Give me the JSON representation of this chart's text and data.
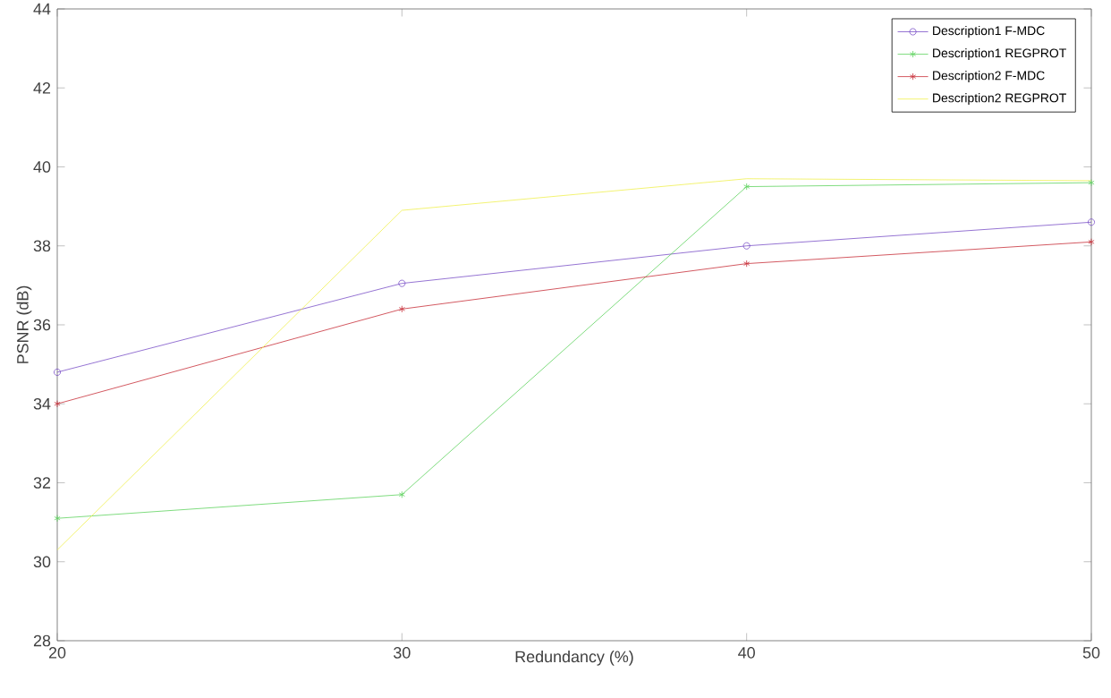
{
  "chart_data": {
    "type": "line",
    "xlabel": "Redundancy (%)",
    "ylabel": "PSNR (dB)",
    "x": [
      20,
      30,
      40,
      50
    ],
    "series": [
      {
        "name": "Description1 F-MDC",
        "color": "#7b52c8",
        "marker": "circle",
        "values": [
          34.8,
          37.05,
          38.0,
          38.6
        ]
      },
      {
        "name": "Description1 REGPROT",
        "color": "#5fd35f",
        "marker": "cross",
        "values": [
          31.1,
          31.7,
          39.5,
          39.6
        ]
      },
      {
        "name": "Description2 F-MDC",
        "color": "#c8303a",
        "marker": "cross",
        "values": [
          34.0,
          36.4,
          37.55,
          38.1
        ]
      },
      {
        "name": "Description2 REGPROT",
        "color": "#f0f050",
        "marker": "none",
        "values": [
          30.3,
          38.9,
          39.7,
          39.65
        ]
      }
    ],
    "xlim": [
      20,
      50
    ],
    "ylim": [
      28,
      44
    ],
    "xticks": [
      20,
      30,
      40,
      50
    ],
    "yticks": [
      28,
      30,
      32,
      34,
      36,
      38,
      40,
      42,
      44
    ],
    "legend": "top right",
    "grid": false,
    "line_style": "solid"
  }
}
